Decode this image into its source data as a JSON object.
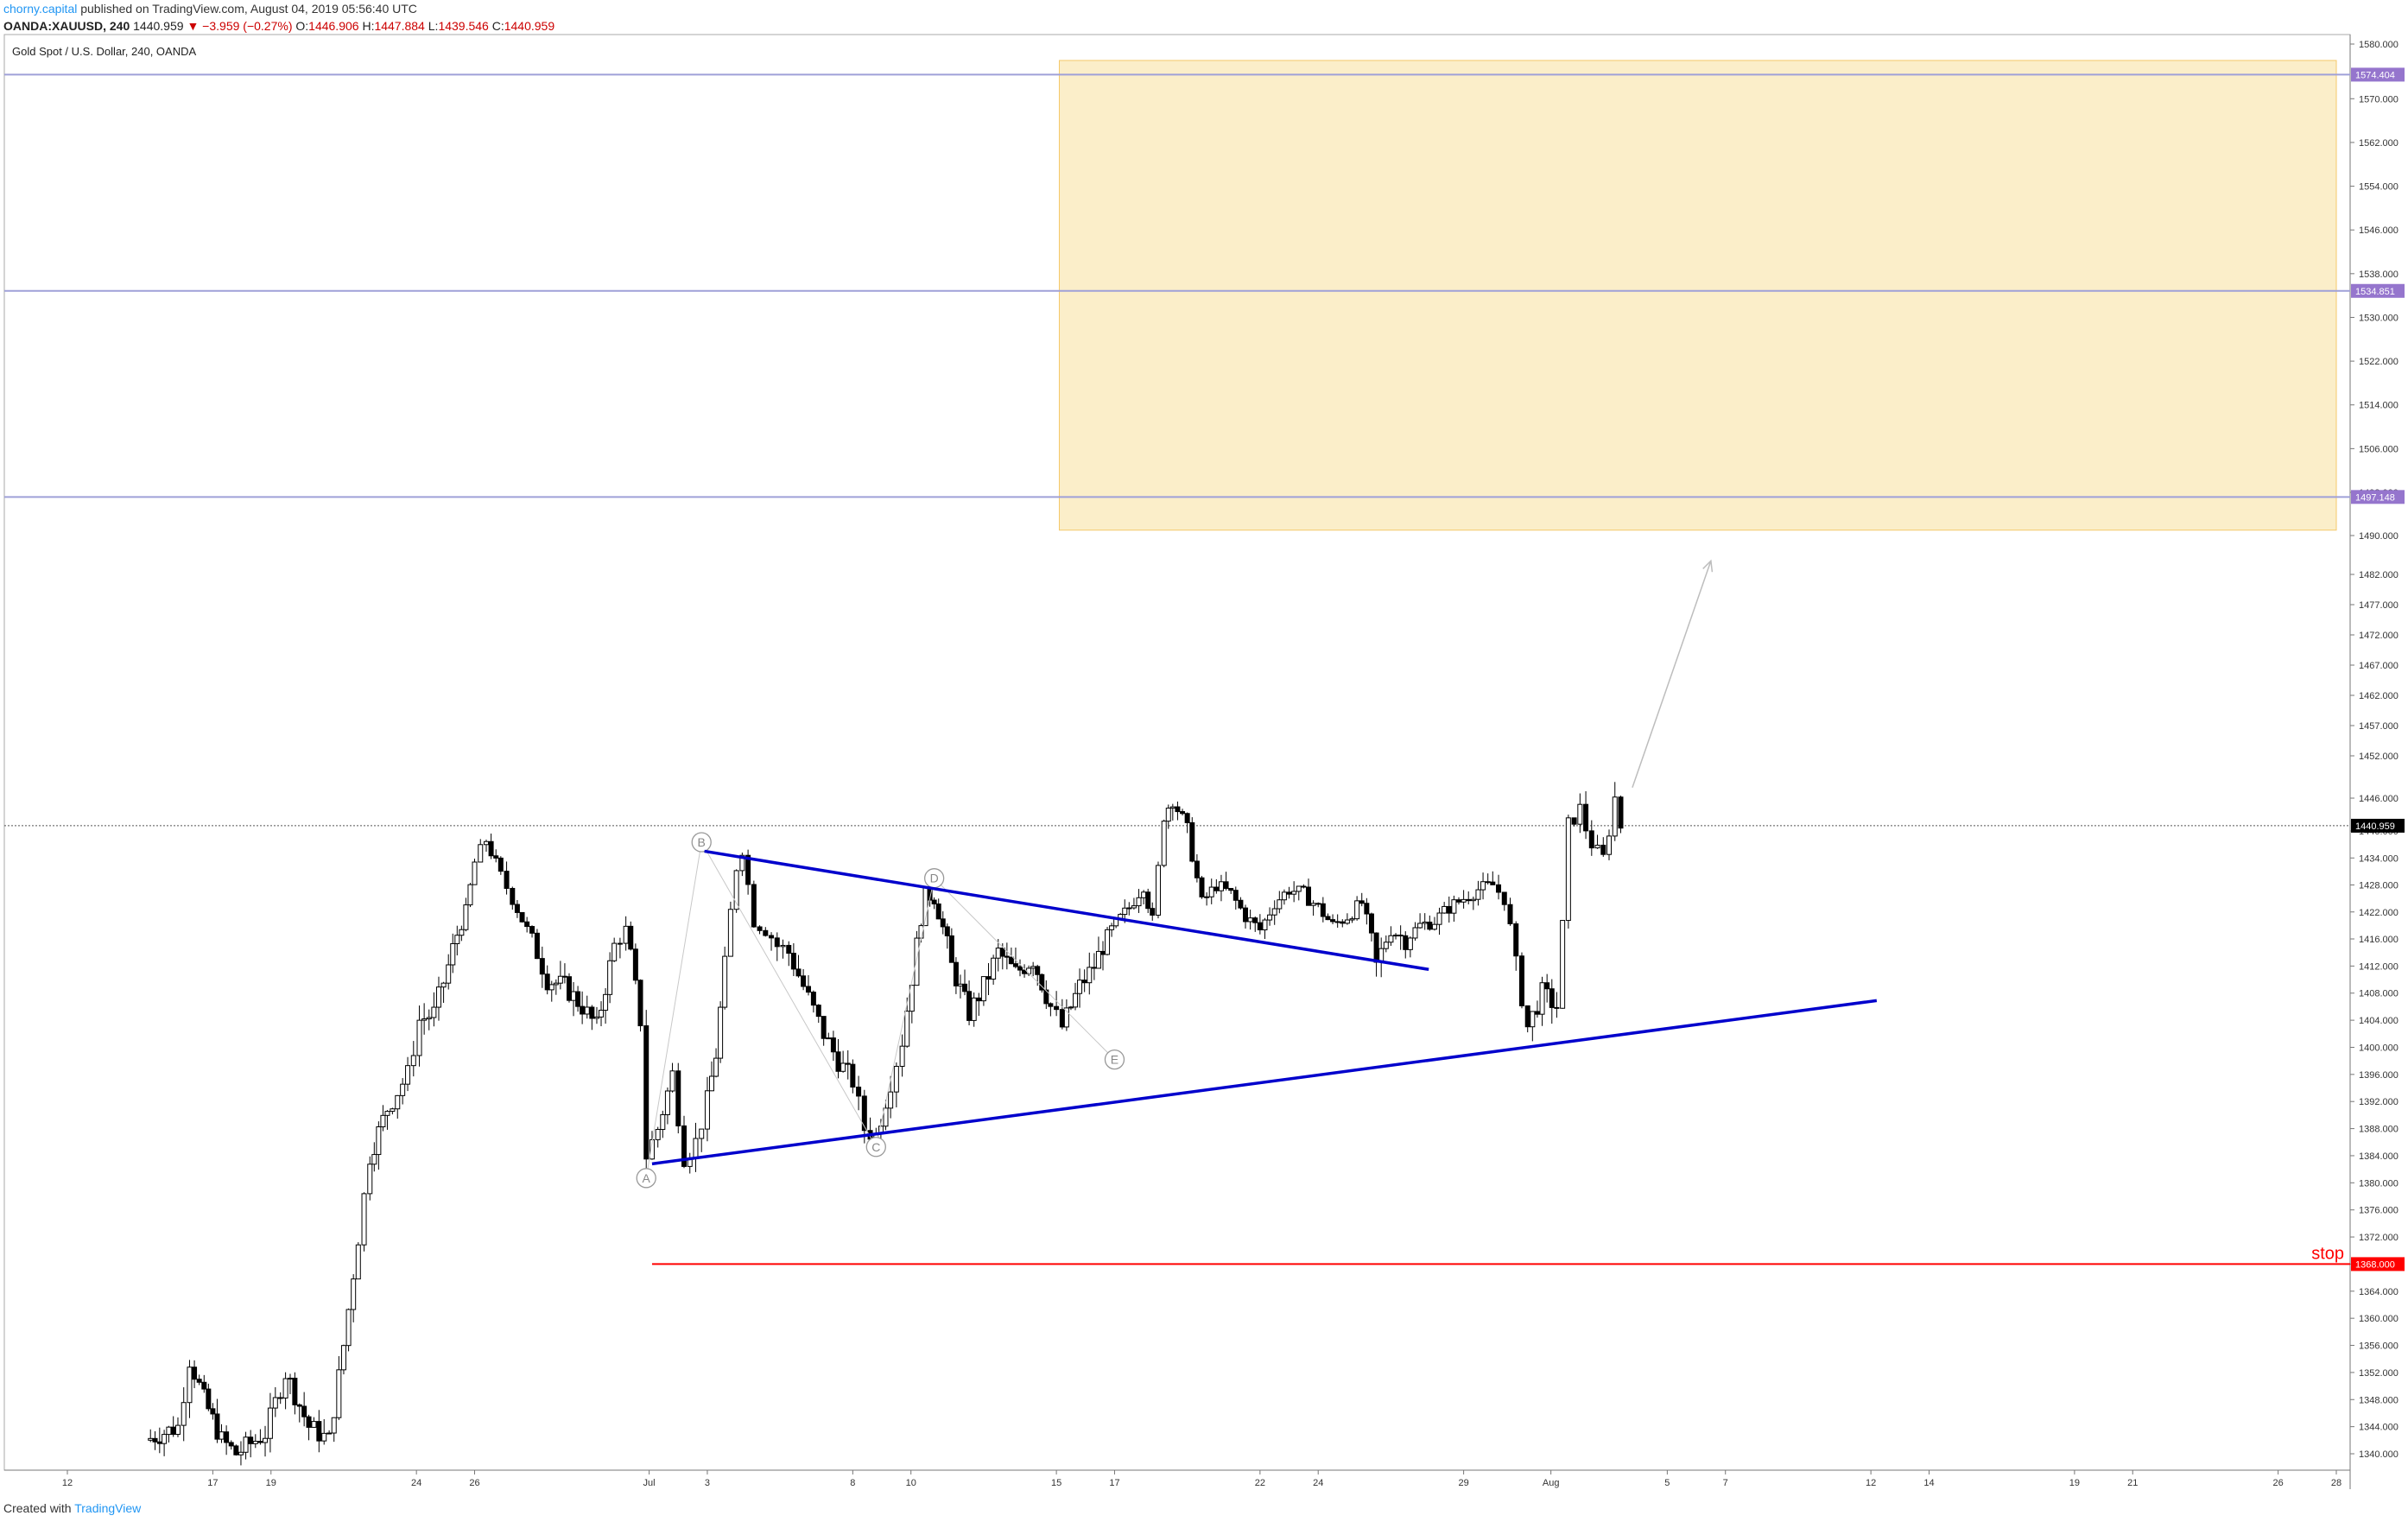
{
  "header": {
    "author": "chorny.capital",
    "published": "published on TradingView.com, August 04, 2019 05:56:40 UTC",
    "symbol": "OANDA:XAUUSD, 240",
    "last": "1440.959",
    "change": "▼ −3.959 (−0.27%)",
    "o_label": "O:",
    "o": "1446.906",
    "h_label": "H:",
    "h": "1447.884",
    "l_label": "L:",
    "l": "1439.546",
    "c_label": "C:",
    "c": "1440.959"
  },
  "footer": {
    "created_with": "Created with",
    "brand": "TradingView"
  },
  "chart_data": {
    "type": "candlestick",
    "title": "Gold Spot / U.S. Dollar, 240, OANDA",
    "ylim": [
      1336,
      1582
    ],
    "y_ticks": [
      "1580.000",
      "1570.000",
      "1562.000",
      "1554.000",
      "1546.000",
      "1538.000",
      "1530.000",
      "1522.000",
      "1514.000",
      "1506.000",
      "1498.000",
      "1490.000",
      "1482.000",
      "1477.000",
      "1472.000",
      "1467.000",
      "1462.000",
      "1457.000",
      "1452.000",
      "1446.000",
      "1440.000",
      "1434.000",
      "1428.000",
      "1422.000",
      "1416.000",
      "1412.000",
      "1408.000",
      "1404.000",
      "1400.000",
      "1396.000",
      "1392.000",
      "1388.000",
      "1384.000",
      "1380.000",
      "1376.000",
      "1372.000",
      "1368.000",
      "1364.000",
      "1360.000",
      "1356.000",
      "1352.000",
      "1348.000",
      "1344.000",
      "1340.000"
    ],
    "x_ticks": [
      "12",
      "17",
      "19",
      "24",
      "26",
      "Jul",
      "3",
      "8",
      "10",
      "15",
      "17",
      "22",
      "24",
      "29",
      "Aug",
      "5",
      "7",
      "12",
      "14",
      "19",
      "21",
      "26",
      "28"
    ],
    "x_tick_days": [
      -19,
      -14,
      -12,
      -7,
      -5,
      1,
      3,
      8,
      10,
      15,
      17,
      22,
      24,
      29,
      32,
      36,
      38,
      43,
      45,
      50,
      52,
      57,
      59
    ],
    "x_unit": "calendar days from Jul 1, 2019",
    "last_price": 1440.959,
    "price_labels": [
      {
        "value": 1574.404,
        "text": "1574.404",
        "color": "#9575cd"
      },
      {
        "value": 1534.851,
        "text": "1534.851",
        "color": "#9575cd"
      },
      {
        "value": 1497.148,
        "text": "1497.148",
        "color": "#9575cd"
      },
      {
        "value": 1440.959,
        "text": "1440.959",
        "color": "#000000"
      },
      {
        "value": 1368.0,
        "text": "1368.000",
        "color": "#ff0000"
      }
    ],
    "horizontal_levels": [
      1574.404,
      1534.851,
      1497.148
    ],
    "target_zone": {
      "x_from": 15.1,
      "x_to": 59,
      "y_from": 1491,
      "y_to": 1577,
      "color": "#fbeec9"
    },
    "stop": {
      "value": 1368,
      "label": "stop",
      "x_from": 1.1
    },
    "trendlines": [
      {
        "x1": 1.1,
        "y1": 1382.8,
        "x2": 43.2,
        "y2": 1406.9,
        "color": "#0000cc"
      },
      {
        "x1": 2.9,
        "y1": 1435.5,
        "x2": 27.8,
        "y2": 1411.5,
        "color": "#0000cc"
      }
    ],
    "wave_points": [
      {
        "label": "A",
        "x": 0.9,
        "y": 1380.7
      },
      {
        "label": "B",
        "x": 2.8,
        "y": 1437.5
      },
      {
        "label": "C",
        "x": 8.8,
        "y": 1385.3
      },
      {
        "label": "D",
        "x": 10.8,
        "y": 1429.5
      },
      {
        "label": "E",
        "x": 17.0,
        "y": 1398.2
      }
    ],
    "arrow": {
      "x1": 34.8,
      "y1": 1447.5,
      "x2": 37.5,
      "y2": 1484.8
    },
    "price_path": [
      [
        -16.3,
        1342
      ],
      [
        -15.2,
        1344
      ],
      [
        -14.8,
        1354
      ],
      [
        -14.3,
        1348
      ],
      [
        -13.7,
        1342
      ],
      [
        -13.2,
        1340
      ],
      [
        -12.2,
        1343
      ],
      [
        -11.5,
        1352
      ],
      [
        -10.7,
        1344
      ],
      [
        -10.0,
        1342
      ],
      [
        -9.5,
        1356
      ],
      [
        -9.0,
        1372
      ],
      [
        -8.6,
        1384
      ],
      [
        -8.0,
        1391
      ],
      [
        -7.3,
        1396
      ],
      [
        -6.9,
        1404
      ],
      [
        -6.4,
        1405
      ],
      [
        -5.9,
        1412
      ],
      [
        -5.3,
        1422
      ],
      [
        -5.0,
        1433
      ],
      [
        -4.6,
        1438
      ],
      [
        -4.1,
        1430
      ],
      [
        -3.7,
        1425
      ],
      [
        -3.2,
        1418
      ],
      [
        -2.5,
        1410
      ],
      [
        -1.9,
        1409
      ],
      [
        -1.3,
        1406
      ],
      [
        -0.8,
        1403
      ],
      [
        -0.2,
        1415
      ],
      [
        0.2,
        1418
      ],
      [
        0.7,
        1404
      ],
      [
        0.9,
        1384
      ],
      [
        1.3,
        1388
      ],
      [
        1.8,
        1396
      ],
      [
        2.2,
        1384
      ],
      [
        2.6,
        1386
      ],
      [
        3.0,
        1392
      ],
      [
        3.3,
        1399
      ],
      [
        3.6,
        1412
      ],
      [
        4.0,
        1432
      ],
      [
        4.2,
        1436
      ],
      [
        4.6,
        1420
      ],
      [
        5.0,
        1418
      ],
      [
        5.4,
        1415
      ],
      [
        5.8,
        1414
      ],
      [
        6.3,
        1409
      ],
      [
        7.0,
        1402
      ],
      [
        7.5,
        1398
      ],
      [
        8.0,
        1395
      ],
      [
        8.4,
        1388
      ],
      [
        8.8,
        1387
      ],
      [
        9.3,
        1395
      ],
      [
        9.7,
        1401
      ],
      [
        10.2,
        1415
      ],
      [
        10.5,
        1426
      ],
      [
        10.8,
        1425
      ],
      [
        11.4,
        1412
      ],
      [
        12.0,
        1405
      ],
      [
        12.5,
        1409
      ],
      [
        13.0,
        1414
      ],
      [
        13.6,
        1411
      ],
      [
        14.2,
        1413
      ],
      [
        14.8,
        1406
      ],
      [
        15.2,
        1403
      ],
      [
        15.8,
        1409
      ],
      [
        16.3,
        1412
      ],
      [
        16.9,
        1418
      ],
      [
        17.5,
        1423
      ],
      [
        18.0,
        1428
      ],
      [
        18.3,
        1420
      ],
      [
        18.7,
        1443
      ],
      [
        19.0,
        1446
      ],
      [
        19.5,
        1440
      ],
      [
        20.0,
        1424
      ],
      [
        20.5,
        1428
      ],
      [
        21.0,
        1426
      ],
      [
        21.5,
        1421
      ],
      [
        22.0,
        1418
      ],
      [
        22.5,
        1424
      ],
      [
        23.0,
        1427
      ],
      [
        23.5,
        1426
      ],
      [
        24.0,
        1423
      ],
      [
        24.5,
        1419
      ],
      [
        25.0,
        1421
      ],
      [
        25.5,
        1424
      ],
      [
        26.0,
        1412
      ],
      [
        26.5,
        1418
      ],
      [
        27.0,
        1416
      ],
      [
        27.5,
        1419
      ],
      [
        28.0,
        1420
      ],
      [
        28.5,
        1423
      ],
      [
        29.0,
        1425
      ],
      [
        29.5,
        1427
      ],
      [
        30.0,
        1428
      ],
      [
        30.4,
        1425
      ],
      [
        30.8,
        1412
      ],
      [
        31.2,
        1403
      ],
      [
        31.7,
        1408
      ],
      [
        32.2,
        1406
      ],
      [
        32.4,
        1419
      ],
      [
        32.6,
        1441
      ],
      [
        33.0,
        1444
      ],
      [
        33.4,
        1437
      ],
      [
        33.8,
        1434
      ],
      [
        34.2,
        1446
      ],
      [
        34.4,
        1440.959
      ]
    ]
  }
}
